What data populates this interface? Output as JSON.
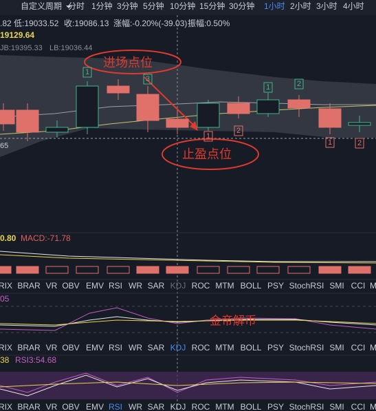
{
  "toolbar": {
    "custom": "自定义周期",
    "periods": [
      "分时",
      "1分钟",
      "3分钟",
      "5分钟",
      "10分钟",
      "15分钟",
      "30分钟",
      "1小时",
      "2小时",
      "3小时",
      "4小时"
    ],
    "active": "1小时"
  },
  "info": {
    "open_tail": ".82",
    "low": "低:19033.52",
    "close": "收:19086.13",
    "change": "涨幅:-0.20%(-39.03)",
    "amplitude": "振幅:0.50%"
  },
  "price_label": "19129.64",
  "boll": {
    "ub": "JB:19395.33",
    "lb": "LB:19036.44"
  },
  "low_tail": "65",
  "annotations": {
    "entry": "进场点位",
    "take_profit": "止盈点位",
    "watermark": "金帝解币"
  },
  "markers": {
    "green": [
      "1",
      "3",
      "1",
      "2"
    ],
    "red": [
      "1",
      "2",
      "1",
      "2"
    ]
  },
  "macd": {
    "value_tail": "0.80",
    "macd": "MACD:-71.78"
  },
  "kdj": {
    "value_tail": "05"
  },
  "rsi": {
    "value_tail": "38",
    "rsi3": "RSI3:54.68"
  },
  "tabs": [
    "RIX",
    "BRAR",
    "VR",
    "OBV",
    "EMV",
    "RSI",
    "WR",
    "SAR",
    "KDJ",
    "ROC",
    "MTM",
    "BOLL",
    "PSY",
    "StochRSI",
    "SMI",
    "CCI",
    "M"
  ]
}
